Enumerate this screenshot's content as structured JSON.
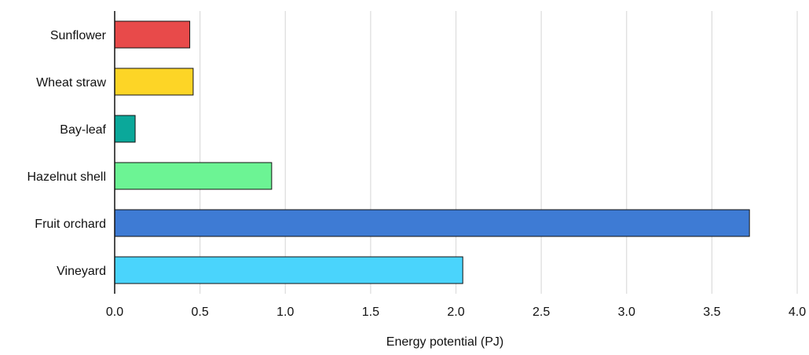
{
  "chart_data": {
    "type": "bar",
    "orientation": "horizontal",
    "categories": [
      "Sunflower",
      "Wheat straw",
      "Bay-leaf",
      "Hazelnut shell",
      "Fruit orchard",
      "Vineyard"
    ],
    "values": [
      0.44,
      0.46,
      0.12,
      0.92,
      3.72,
      2.04
    ],
    "colors": [
      "#e84a4a",
      "#fdd526",
      "#0ba89a",
      "#6cf494",
      "#3e7bd4",
      "#4ad4fc"
    ],
    "xlabel": "Energy potential (PJ)",
    "ylabel": "",
    "xlim": [
      0,
      4
    ],
    "xticks": [
      "0.0",
      "0.5",
      "1.0",
      "1.5",
      "2.0",
      "2.5",
      "3.0",
      "3.5",
      "4.0"
    ],
    "grid": "vertical",
    "legend": "none"
  }
}
